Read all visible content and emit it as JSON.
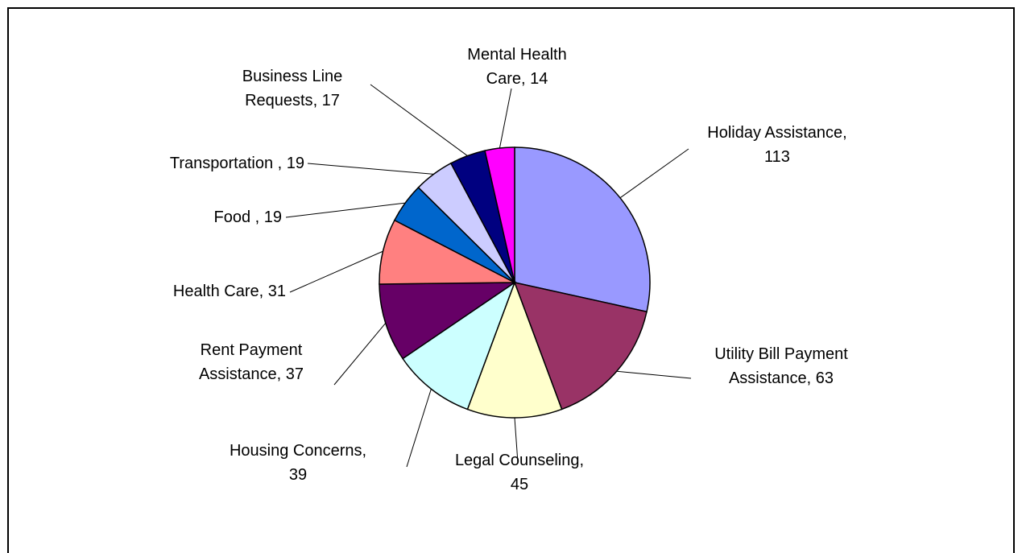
{
  "chart_data": {
    "type": "pie",
    "categories": [
      "Holiday Assistance",
      "Utility Bill Payment Assistance",
      "Legal Counseling",
      "Housing Concerns",
      "Rent Payment Assistance",
      "Health Care",
      "Food ",
      "Transportation ",
      "Business Line Requests",
      "Mental Health Care"
    ],
    "values": [
      113,
      63,
      45,
      39,
      37,
      31,
      19,
      19,
      17,
      14
    ],
    "value_labels": [
      ", 113",
      ", 63",
      ", 45",
      ", 39",
      ", 37",
      ", 31",
      ", 19",
      ", 19",
      ", 17",
      ", 14"
    ],
    "colors": [
      "#9999ff",
      "#993366",
      "#ffffcc",
      "#ccffff",
      "#660066",
      "#ff8080",
      "#0066cc",
      "#ccccff",
      "#000080",
      "#ff00ff"
    ]
  }
}
